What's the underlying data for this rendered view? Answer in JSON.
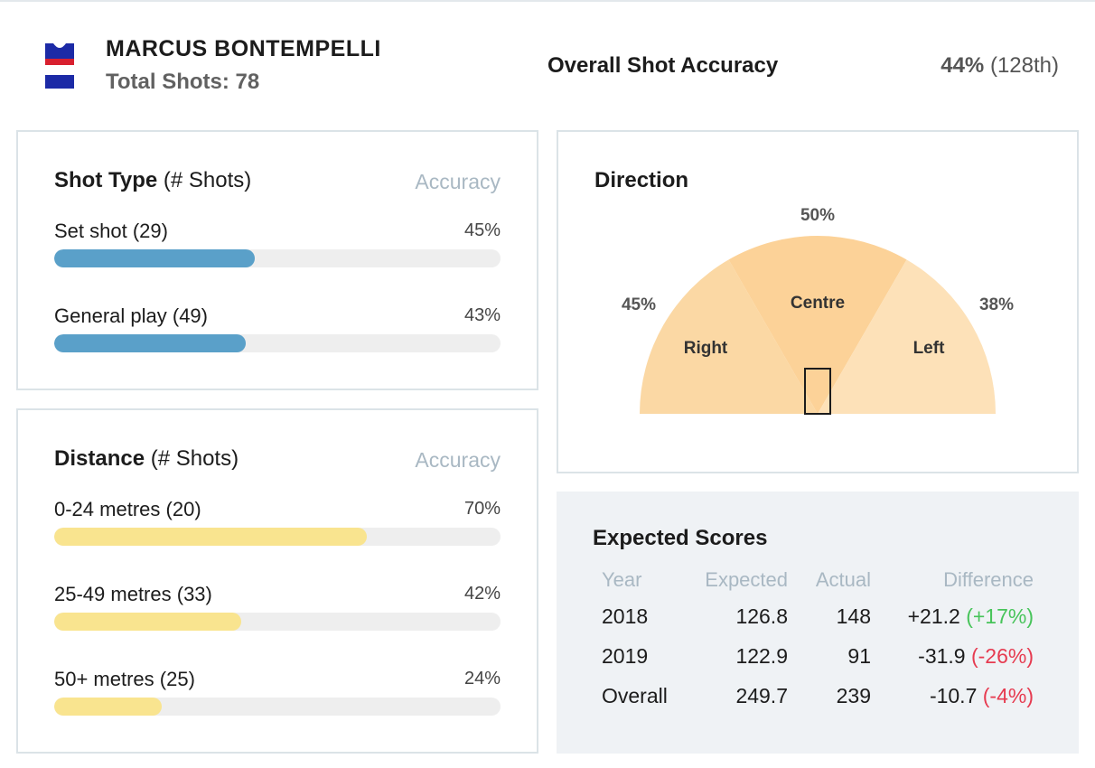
{
  "header": {
    "player_name": "MARCUS BONTEMPELLI",
    "total_shots": "Total Shots: 78",
    "overall_label": "Overall Shot Accuracy",
    "overall_pct": "44%",
    "overall_rank": "(128th)"
  },
  "colors": {
    "guernsey_blue": "#1c2aa6",
    "guernsey_red": "#d8202f",
    "shot_type_bar": "#5aa0c9",
    "distance_bar": "#f9e48f",
    "positive": "#47c45a",
    "negative": "#e63b50",
    "direction_right": "#fbd8a4",
    "direction_centre": "#fcd298",
    "direction_left": "#fde1b8"
  },
  "shot_type": {
    "title": "Shot Type",
    "suffix": "(# Shots)",
    "accuracy_label": "Accuracy",
    "rows": [
      {
        "label": "Set shot",
        "count": "(29)",
        "pct_text": "45%",
        "fill": 0.45
      },
      {
        "label": "General play",
        "count": "(49)",
        "pct_text": "43%",
        "fill": 0.43
      }
    ]
  },
  "distance": {
    "title": "Distance",
    "suffix": "(# Shots)",
    "accuracy_label": "Accuracy",
    "rows": [
      {
        "label": "0-24 metres",
        "count": "(20)",
        "pct_text": "70%",
        "fill": 0.7
      },
      {
        "label": "25-49 metres",
        "count": "(33)",
        "pct_text": "42%",
        "fill": 0.42
      },
      {
        "label": "50+ metres",
        "count": "(25)",
        "pct_text": "24%",
        "fill": 0.24
      }
    ]
  },
  "direction": {
    "title": "Direction",
    "centre_pct": "50%",
    "right_pct": "45%",
    "left_pct": "38%",
    "centre_label": "Centre",
    "right_label": "Right",
    "left_label": "Left"
  },
  "expected_scores": {
    "title": "Expected Scores",
    "headers": [
      "Year",
      "Expected",
      "Actual",
      "Difference"
    ],
    "rows": [
      {
        "year": "2018",
        "expected": "126.8",
        "actual": "148",
        "diff": "+21.2",
        "diff_pct": "(+17%)",
        "sign": "pos"
      },
      {
        "year": "2019",
        "expected": "122.9",
        "actual": "91",
        "diff": "-31.9",
        "diff_pct": "(-26%)",
        "sign": "neg"
      },
      {
        "year": "Overall",
        "expected": "249.7",
        "actual": "239",
        "diff": "-10.7",
        "diff_pct": "(-4%)",
        "sign": "neg"
      }
    ]
  }
}
